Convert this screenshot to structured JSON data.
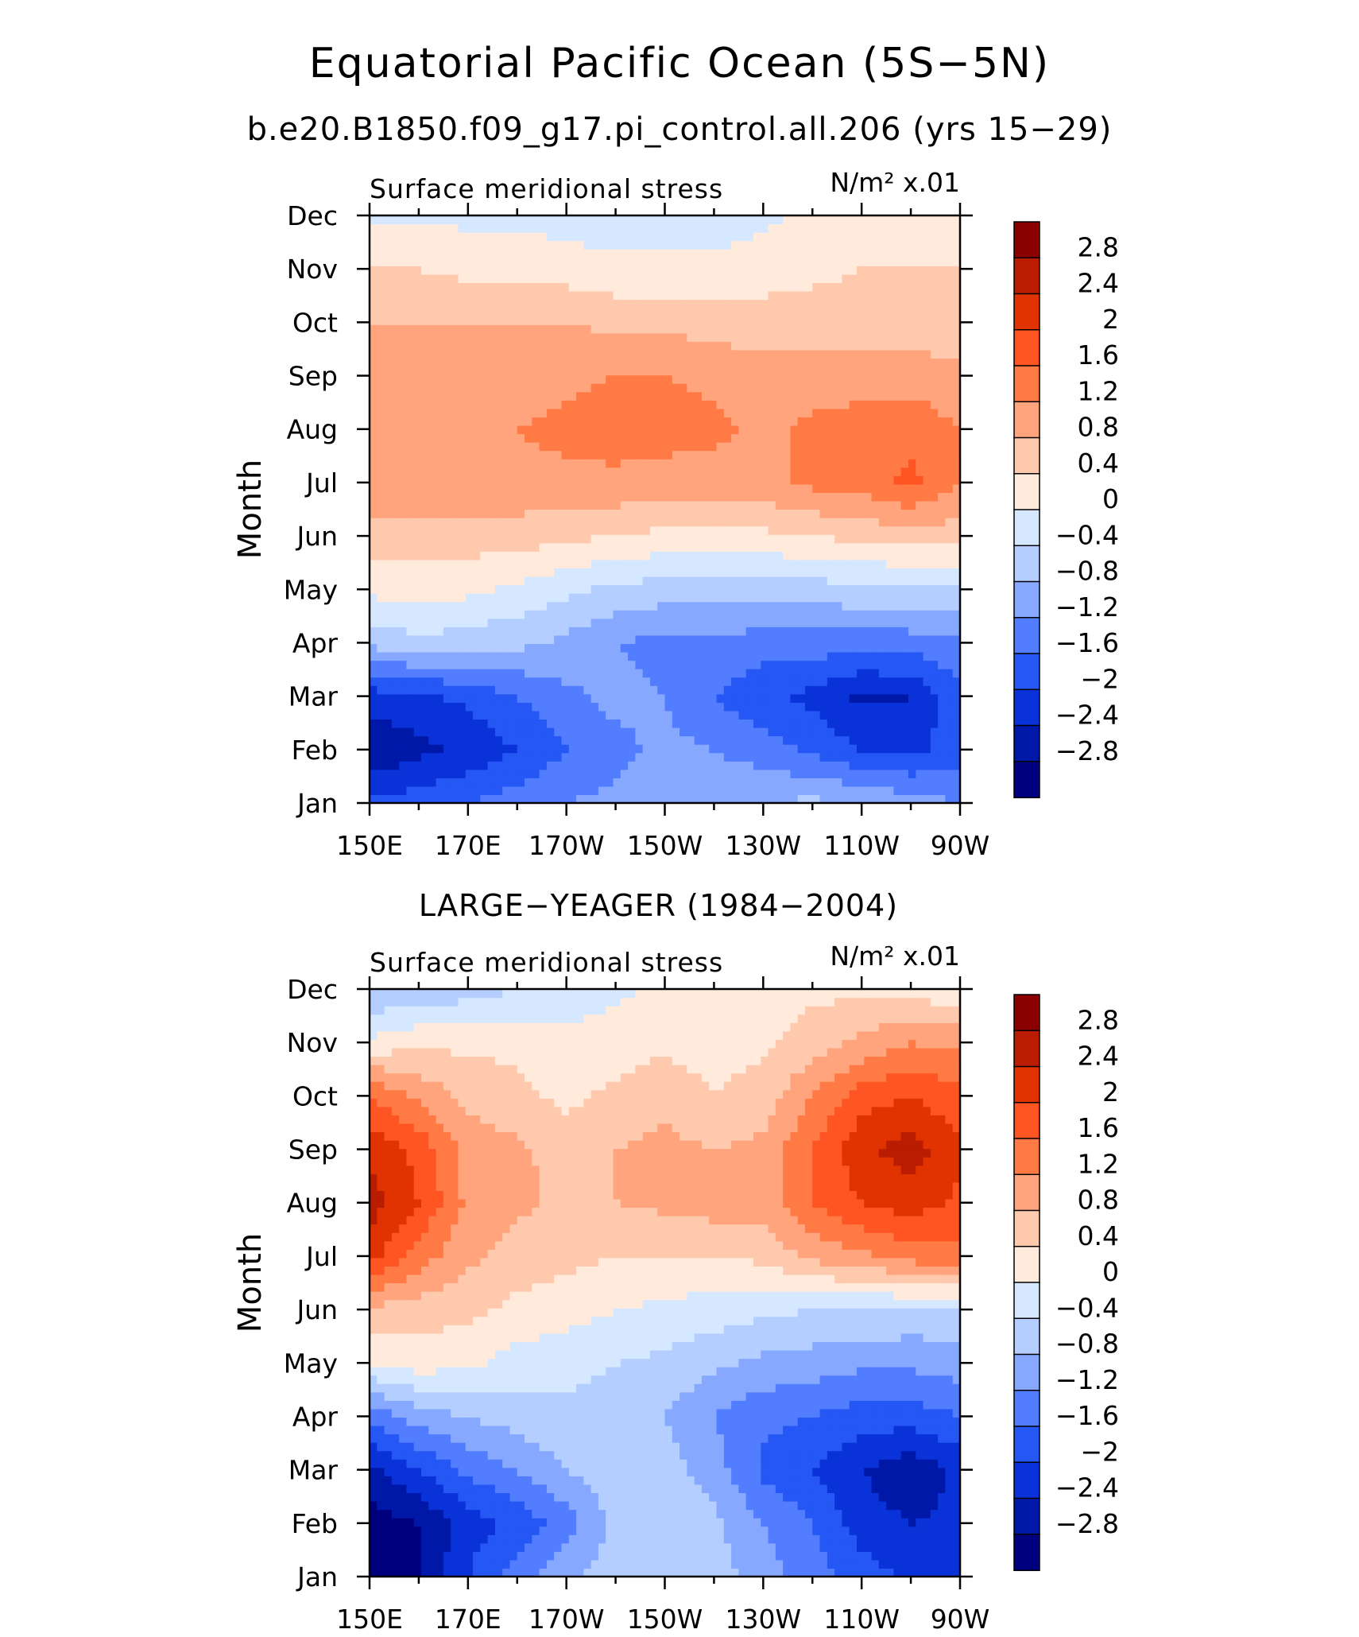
{
  "figure": {
    "title": "Equatorial Pacific Ocean (5S−5N)",
    "subtitle": "b.e20.B1850.f09_g17.pi_control.all.206 (yrs 15−29)"
  },
  "colorbar": {
    "labels": [
      "2.8",
      "2.4",
      "2",
      "1.6",
      "1.2",
      "0.8",
      "0.4",
      "0",
      "−0.4",
      "−0.8",
      "−1.2",
      "−1.6",
      "−2",
      "−2.4",
      "−2.8"
    ],
    "colors": [
      "#8b0000",
      "#b91c00",
      "#e03300",
      "#ff5522",
      "#ff7a45",
      "#ffa47c",
      "#ffc9ae",
      "#ffeadb",
      "#d6e8ff",
      "#b3ceff",
      "#86a9ff",
      "#527dff",
      "#2557f5",
      "#0a32d9",
      "#0018a8",
      "#00007f"
    ]
  },
  "chart_data": [
    {
      "type": "heatmap",
      "title": "",
      "left_label": "Surface meridional stress",
      "units_label": "N/m² x.01",
      "xlabel": "",
      "ylabel": "Month",
      "x_ticks": [
        "150E",
        "170E",
        "170W",
        "150W",
        "130W",
        "110W",
        "90W"
      ],
      "x_lon": [
        150,
        160,
        170,
        180,
        190,
        200,
        210,
        220,
        230,
        240,
        250,
        260,
        270
      ],
      "y_ticks": [
        "Jan",
        "Feb",
        "Mar",
        "Apr",
        "May",
        "Jun",
        "Jul",
        "Aug",
        "Sep",
        "Oct",
        "Nov",
        "Dec"
      ],
      "contour_levels": [
        -2.8,
        -2.4,
        -2.0,
        -1.6,
        -1.2,
        -0.8,
        -0.4,
        0,
        0.4,
        0.8,
        1.2,
        1.6,
        2.0,
        2.4,
        2.8
      ],
      "values": [
        [
          -1.9,
          -1.8,
          -1.6,
          -1.4,
          -1.2,
          -1.1,
          -1.0,
          -0.9,
          -0.8,
          -0.7,
          -0.8,
          -1.0,
          -1.2
        ],
        [
          -2.8,
          -2.5,
          -2.3,
          -2.0,
          -1.6,
          -1.3,
          -1.1,
          -1.2,
          -1.4,
          -1.7,
          -2.0,
          -2.1,
          -1.8
        ],
        [
          -2.2,
          -2.1,
          -1.9,
          -1.6,
          -1.3,
          -1.1,
          -1.2,
          -1.6,
          -1.9,
          -2.1,
          -2.5,
          -2.4,
          -1.7
        ],
        [
          -0.7,
          -0.5,
          -0.6,
          -0.7,
          -0.9,
          -1.2,
          -1.3,
          -1.3,
          -1.4,
          -1.4,
          -1.4,
          -1.4,
          -1.3
        ],
        [
          0.1,
          0.2,
          0.1,
          -0.1,
          -0.3,
          -0.5,
          -0.6,
          -0.6,
          -0.6,
          -0.6,
          -0.5,
          -0.5,
          -0.4
        ],
        [
          0.6,
          0.6,
          0.6,
          0.6,
          0.5,
          0.4,
          0.3,
          0.3,
          0.3,
          0.4,
          0.5,
          0.6,
          0.6
        ],
        [
          1.1,
          1.1,
          1.1,
          1.1,
          1.1,
          1.1,
          1.0,
          1.0,
          1.1,
          1.3,
          1.4,
          1.7,
          1.2
        ],
        [
          1.1,
          1.0,
          1.1,
          1.2,
          1.3,
          1.4,
          1.4,
          1.3,
          1.1,
          1.3,
          1.4,
          1.5,
          1.2
        ],
        [
          1.0,
          0.9,
          0.9,
          1.0,
          1.1,
          1.2,
          1.2,
          1.1,
          1.0,
          1.0,
          1.0,
          1.0,
          0.9
        ],
        [
          0.8,
          0.8,
          0.8,
          0.8,
          0.8,
          0.7,
          0.7,
          0.6,
          0.6,
          0.6,
          0.6,
          0.6,
          0.5
        ],
        [
          0.4,
          0.4,
          0.3,
          0.3,
          0.2,
          0.1,
          0.1,
          0.1,
          0.2,
          0.3,
          0.4,
          0.4,
          0.4
        ],
        [
          -0.1,
          -0.1,
          -0.1,
          -0.1,
          -0.2,
          -0.2,
          -0.2,
          -0.2,
          -0.1,
          0.1,
          0.3,
          0.3,
          0.3
        ]
      ]
    },
    {
      "type": "heatmap",
      "title": "LARGE−YEAGER (1984−2004)",
      "left_label": "Surface meridional stress",
      "units_label": "N/m² x.01",
      "xlabel": "",
      "ylabel": "Month",
      "x_ticks": [
        "150E",
        "170E",
        "170W",
        "150W",
        "130W",
        "110W",
        "90W"
      ],
      "x_lon": [
        150,
        160,
        170,
        180,
        190,
        200,
        210,
        220,
        230,
        240,
        250,
        260,
        270
      ],
      "y_ticks": [
        "Jan",
        "Feb",
        "Mar",
        "Apr",
        "May",
        "Jun",
        "Jul",
        "Aug",
        "Sep",
        "Oct",
        "Nov",
        "Dec"
      ],
      "contour_levels": [
        -2.8,
        -2.4,
        -2.0,
        -1.6,
        -1.2,
        -0.8,
        -0.4,
        0,
        0.4,
        0.8,
        1.2,
        1.6,
        2.0,
        2.4,
        2.8
      ],
      "values": [
        [
          -3.0,
          -2.8,
          -2.0,
          -1.4,
          -0.9,
          -0.6,
          -0.4,
          -0.6,
          -1.0,
          -1.4,
          -1.8,
          -2.1,
          -2.0
        ],
        [
          -3.0,
          -2.8,
          -2.2,
          -1.9,
          -1.4,
          -0.7,
          -0.5,
          -0.7,
          -1.2,
          -1.6,
          -2.2,
          -2.4,
          -2.3
        ],
        [
          -2.5,
          -2.0,
          -1.5,
          -1.2,
          -0.8,
          -0.5,
          -0.6,
          -1.0,
          -1.7,
          -2.0,
          -2.4,
          -2.7,
          -2.3
        ],
        [
          -1.5,
          -1.0,
          -0.8,
          -0.6,
          -0.5,
          -0.5,
          -0.8,
          -1.2,
          -1.5,
          -1.6,
          -1.8,
          -1.8,
          -1.6
        ],
        [
          0.0,
          0.2,
          0.1,
          -0.2,
          -0.3,
          -0.4,
          -0.5,
          -0.7,
          -0.9,
          -1.0,
          -1.1,
          -1.1,
          -1.0
        ],
        [
          0.7,
          0.6,
          0.5,
          0.3,
          0.2,
          0.0,
          -0.1,
          -0.2,
          -0.3,
          -0.4,
          -0.4,
          -0.5,
          -0.5
        ],
        [
          2.2,
          1.4,
          0.9,
          0.6,
          0.5,
          0.4,
          0.4,
          0.4,
          0.5,
          0.9,
          1.1,
          1.4,
          1.5
        ],
        [
          2.6,
          2.0,
          1.1,
          0.9,
          0.7,
          0.8,
          0.9,
          1.0,
          1.0,
          1.6,
          2.0,
          2.2,
          1.9
        ],
        [
          2.3,
          1.9,
          1.0,
          0.9,
          0.6,
          0.8,
          0.9,
          0.8,
          0.9,
          1.6,
          2.3,
          2.6,
          2.1
        ],
        [
          1.6,
          1.1,
          0.7,
          0.5,
          0.3,
          0.5,
          0.7,
          0.4,
          0.6,
          1.2,
          1.8,
          2.0,
          1.7
        ],
        [
          0.1,
          0.3,
          0.3,
          0.3,
          0.1,
          0.2,
          0.3,
          0.2,
          0.3,
          0.6,
          0.9,
          1.2,
          1.1
        ],
        [
          -0.8,
          -0.7,
          -0.6,
          -0.4,
          -0.2,
          -0.1,
          0.1,
          0.2,
          0.2,
          0.3,
          0.3,
          0.2,
          0.1
        ]
      ]
    }
  ]
}
